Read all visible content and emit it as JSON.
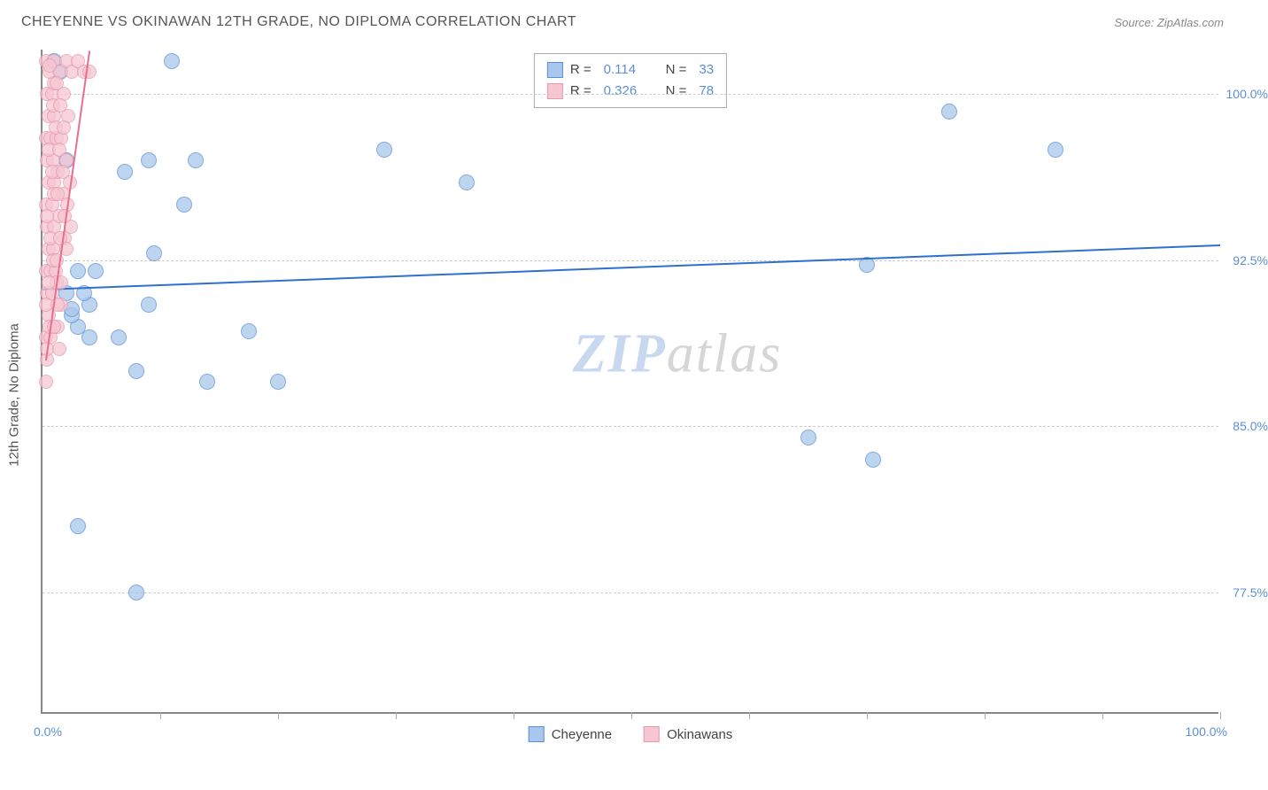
{
  "header": {
    "title": "CHEYENNE VS OKINAWAN 12TH GRADE, NO DIPLOMA CORRELATION CHART",
    "source_label": "Source: ZipAtlas.com"
  },
  "chart": {
    "type": "scatter",
    "background_color": "#ffffff",
    "grid_color": "#cccccc",
    "axis_color": "#888888",
    "y_axis_label": "12th Grade, No Diploma",
    "y_axis_label_color": "#555555",
    "y_axis_label_fontsize": 15,
    "xlim": [
      0,
      100
    ],
    "ylim": [
      72,
      102
    ],
    "x_tick_positions": [
      10,
      20,
      30,
      40,
      50,
      60,
      70,
      80,
      90,
      100
    ],
    "y_ticks": [
      {
        "value": 77.5,
        "label": "77.5%"
      },
      {
        "value": 85.0,
        "label": "85.0%"
      },
      {
        "value": 92.5,
        "label": "92.5%"
      },
      {
        "value": 100.0,
        "label": "100.0%"
      }
    ],
    "x_min_label": "0.0%",
    "x_max_label": "100.0%",
    "tick_label_color": "#5b8fd6",
    "tick_label_fontsize": 14,
    "watermark": {
      "zip": "ZIP",
      "atlas": "atlas"
    },
    "series": [
      {
        "name": "Cheyenne",
        "fill_color": "#a9c7ec",
        "stroke_color": "#5b8fd6",
        "marker_radius": 9,
        "marker_opacity": 0.75,
        "trend": {
          "x1": 0,
          "y1": 91.2,
          "x2": 100,
          "y2": 93.2,
          "color": "#2f6fd0",
          "width": 2
        },
        "legend": {
          "r_label": "R =",
          "r_value": "0.114",
          "n_label": "N =",
          "n_value": "33"
        },
        "points": [
          [
            1.0,
            101.5
          ],
          [
            1.5,
            101.0
          ],
          [
            11.0,
            101.5
          ],
          [
            9.0,
            97.0
          ],
          [
            13.0,
            97.0
          ],
          [
            2.0,
            97.0
          ],
          [
            7.0,
            96.5
          ],
          [
            29.0,
            97.5
          ],
          [
            12.0,
            95.0
          ],
          [
            36.0,
            96.0
          ],
          [
            3.0,
            92.0
          ],
          [
            4.5,
            92.0
          ],
          [
            2.0,
            91.0
          ],
          [
            9.5,
            92.8
          ],
          [
            9.0,
            90.5
          ],
          [
            4.0,
            90.5
          ],
          [
            4.0,
            89.0
          ],
          [
            3.0,
            89.5
          ],
          [
            6.5,
            89.0
          ],
          [
            17.5,
            89.3
          ],
          [
            8.0,
            87.5
          ],
          [
            14.0,
            87.0
          ],
          [
            20.0,
            87.0
          ],
          [
            2.5,
            90.0
          ],
          [
            3.5,
            91.0
          ],
          [
            3.0,
            80.5
          ],
          [
            8.0,
            77.5
          ],
          [
            70.0,
            92.3
          ],
          [
            65.0,
            84.5
          ],
          [
            70.5,
            83.5
          ],
          [
            77.0,
            99.2
          ],
          [
            86.0,
            97.5
          ],
          [
            2.5,
            90.3
          ]
        ]
      },
      {
        "name": "Okinawans",
        "fill_color": "#f6c6d2",
        "stroke_color": "#e599ad",
        "marker_radius": 8,
        "marker_opacity": 0.75,
        "trend": {
          "x1": 0.3,
          "y1": 88.0,
          "x2": 4.0,
          "y2": 102.0,
          "color": "#e76f8e",
          "width": 2
        },
        "legend": {
          "r_label": "R =",
          "r_value": "0.326",
          "n_label": "N =",
          "n_value": "78"
        },
        "points": [
          [
            0.3,
            101.5
          ],
          [
            0.6,
            101.0
          ],
          [
            1.0,
            101.5
          ],
          [
            0.4,
            100.0
          ],
          [
            0.8,
            100.0
          ],
          [
            0.5,
            99.0
          ],
          [
            1.0,
            99.0
          ],
          [
            0.3,
            98.0
          ],
          [
            0.7,
            98.0
          ],
          [
            1.2,
            98.0
          ],
          [
            0.4,
            97.0
          ],
          [
            0.9,
            97.0
          ],
          [
            0.5,
            96.0
          ],
          [
            1.0,
            96.0
          ],
          [
            0.3,
            95.0
          ],
          [
            0.8,
            95.0
          ],
          [
            0.4,
            94.0
          ],
          [
            1.0,
            94.0
          ],
          [
            0.5,
            93.0
          ],
          [
            0.9,
            93.0
          ],
          [
            0.3,
            92.0
          ],
          [
            0.7,
            92.0
          ],
          [
            1.1,
            92.0
          ],
          [
            0.4,
            91.0
          ],
          [
            0.8,
            91.0
          ],
          [
            0.5,
            90.0
          ],
          [
            0.3,
            89.0
          ],
          [
            0.7,
            89.0
          ],
          [
            0.4,
            88.0
          ],
          [
            0.3,
            87.0
          ],
          [
            1.5,
            101.0
          ],
          [
            1.8,
            100.0
          ],
          [
            2.0,
            101.5
          ],
          [
            2.2,
            99.0
          ],
          [
            1.6,
            98.0
          ],
          [
            2.5,
            101.0
          ],
          [
            3.0,
            101.5
          ],
          [
            3.5,
            101.0
          ],
          [
            1.3,
            96.5
          ],
          [
            1.7,
            95.5
          ],
          [
            1.4,
            94.5
          ],
          [
            1.9,
            93.5
          ],
          [
            1.2,
            91.5
          ],
          [
            1.6,
            90.5
          ],
          [
            1.3,
            89.5
          ],
          [
            2.0,
            97.0
          ],
          [
            2.3,
            96.0
          ],
          [
            2.1,
            95.0
          ],
          [
            2.4,
            94.0
          ],
          [
            2.0,
            93.0
          ],
          [
            4.0,
            101.0
          ],
          [
            1.0,
            100.5
          ],
          [
            0.6,
            101.3
          ],
          [
            0.9,
            99.5
          ],
          [
            1.1,
            98.5
          ],
          [
            0.5,
            97.5
          ],
          [
            0.8,
            96.5
          ],
          [
            1.0,
            95.5
          ],
          [
            0.4,
            94.5
          ],
          [
            0.7,
            93.5
          ],
          [
            0.9,
            92.5
          ],
          [
            0.5,
            91.5
          ],
          [
            0.3,
            90.5
          ],
          [
            0.6,
            89.5
          ],
          [
            0.4,
            88.5
          ],
          [
            1.2,
            100.5
          ],
          [
            1.5,
            99.5
          ],
          [
            1.8,
            98.5
          ],
          [
            1.4,
            97.5
          ],
          [
            1.7,
            96.5
          ],
          [
            1.3,
            95.5
          ],
          [
            1.9,
            94.5
          ],
          [
            1.5,
            93.5
          ],
          [
            1.2,
            92.5
          ],
          [
            1.6,
            91.5
          ],
          [
            1.3,
            90.5
          ],
          [
            1.0,
            89.5
          ],
          [
            1.4,
            88.5
          ]
        ]
      }
    ],
    "bottom_legend": [
      {
        "label": "Cheyenne",
        "fill": "#a9c7ec",
        "stroke": "#5b8fd6"
      },
      {
        "label": "Okinawans",
        "fill": "#f6c6d2",
        "stroke": "#e599ad"
      }
    ]
  }
}
